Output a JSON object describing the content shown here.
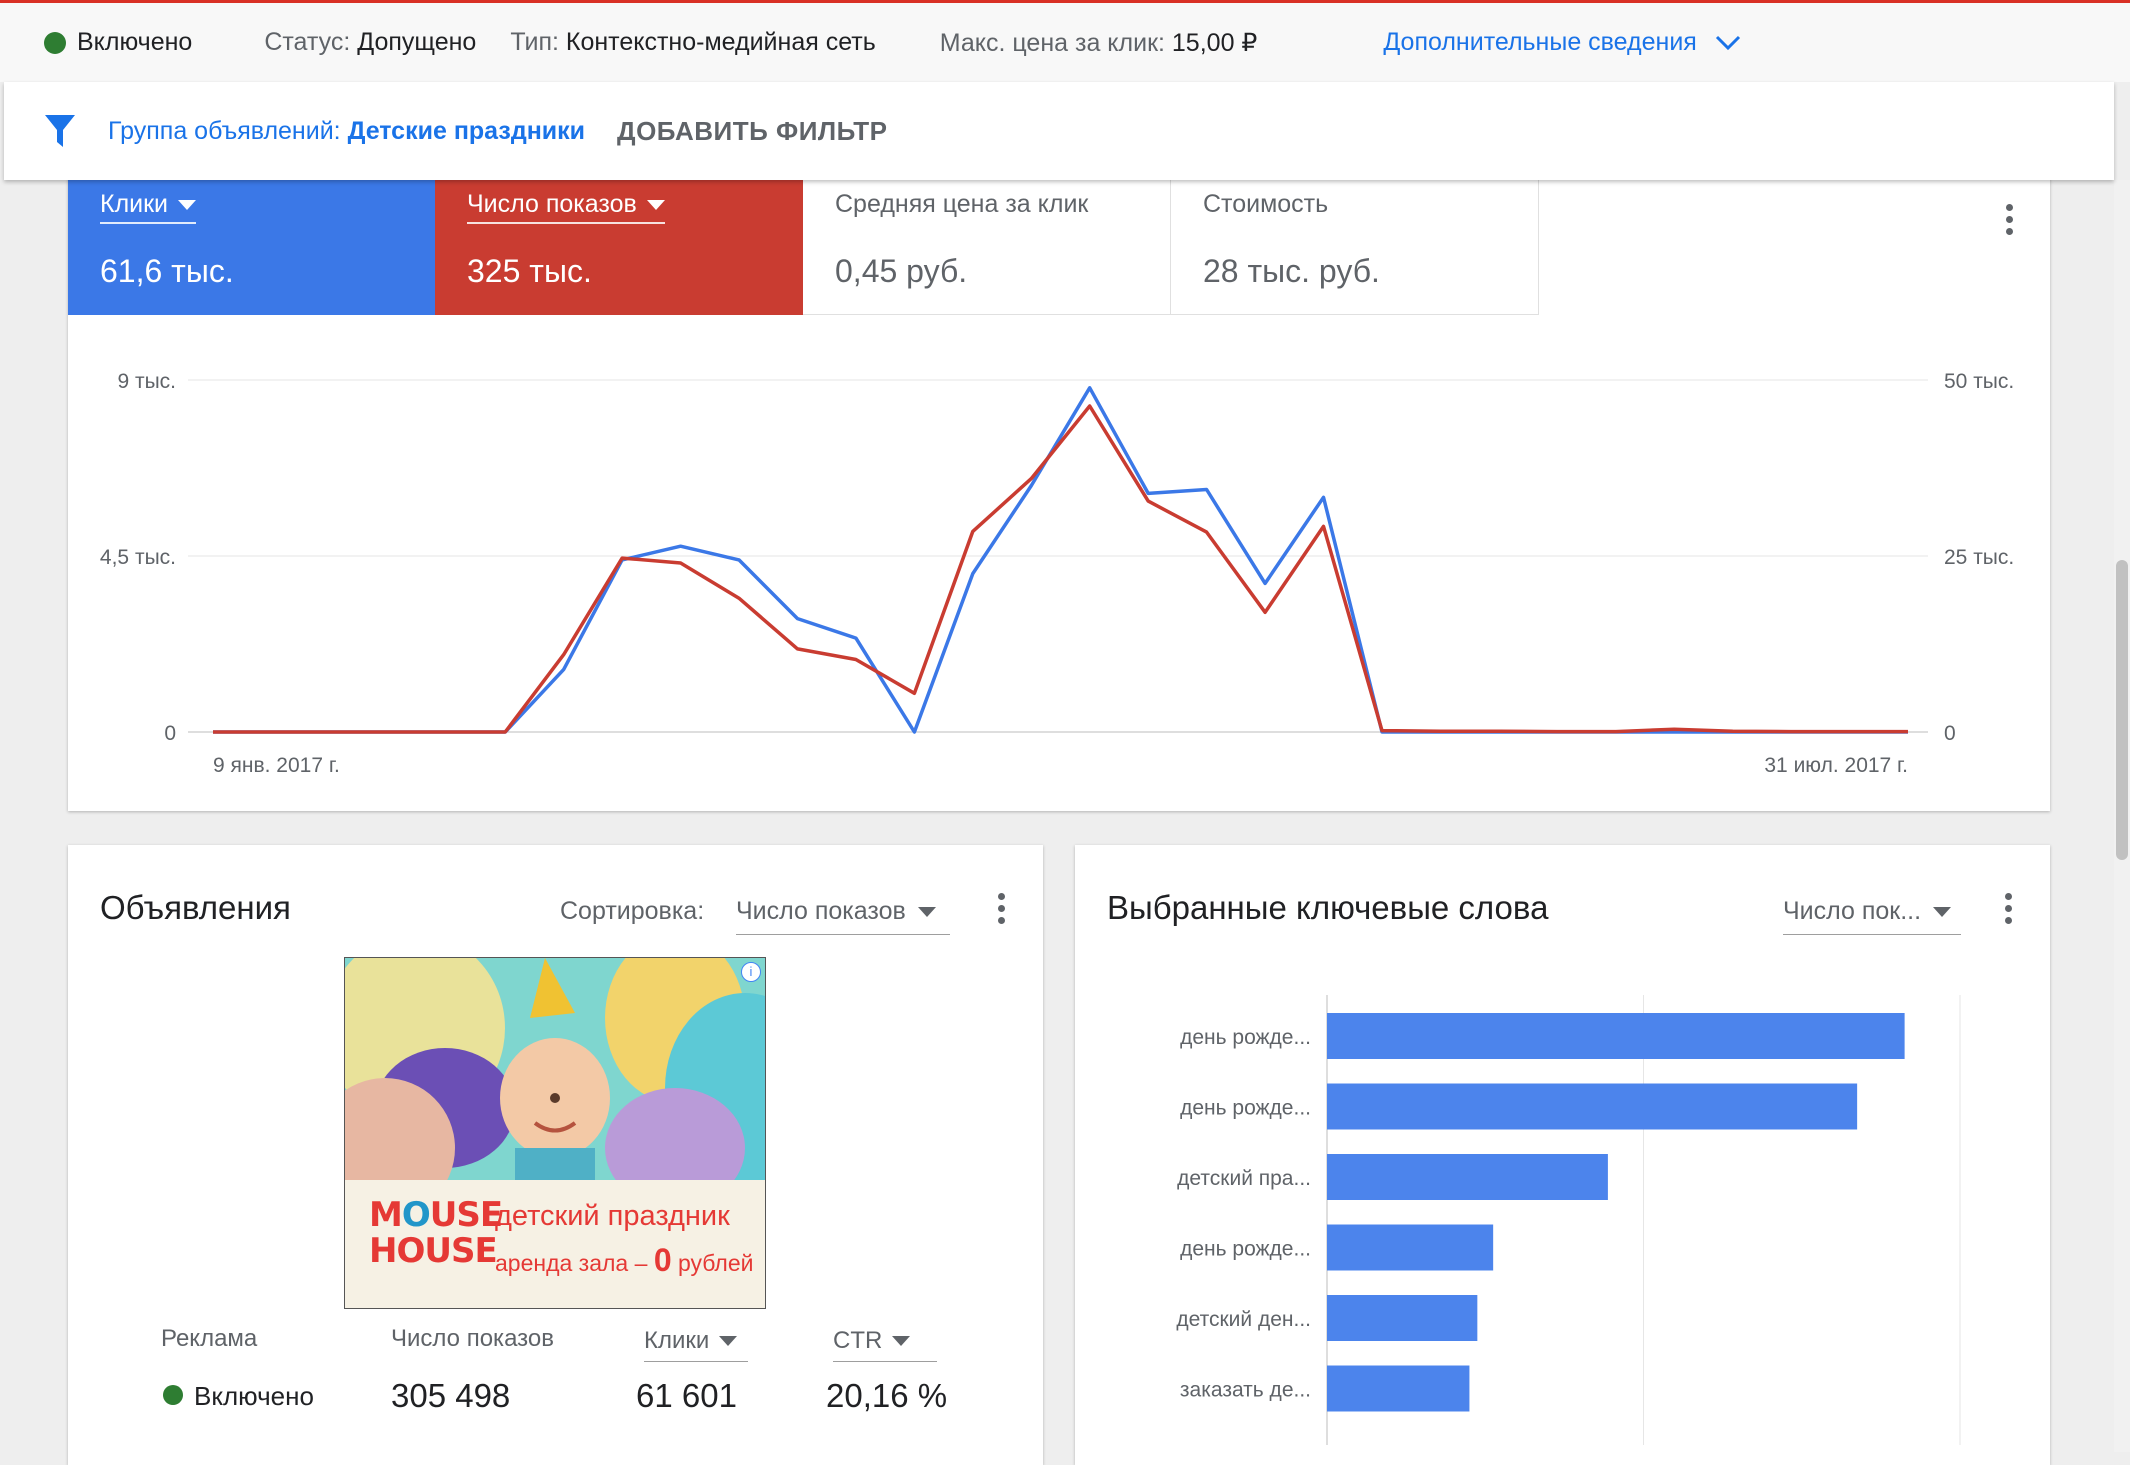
{
  "topbar": {
    "status_on": "Включено",
    "status_label": "Статус:",
    "status_value": "Допущено",
    "type_label": "Тип:",
    "type_value": "Контекстно-медийная сеть",
    "maxcpc_label": "Макс. цена за клик:",
    "maxcpc_value": "15,00 ₽",
    "more_link": "Дополнительные сведения"
  },
  "filterbar": {
    "group_label": "Группа объявлений:",
    "group_value": "Детские праздники",
    "add_filter": "ДОБАВИТЬ ФИЛЬТР"
  },
  "metrics": [
    {
      "label": "Клики",
      "value": "61,6 тыс.",
      "color": "#3b78e7",
      "selected": true
    },
    {
      "label": "Число показов",
      "value": "325 тыс.",
      "color": "#c93c31",
      "selected": true
    },
    {
      "label": "Средняя цена за клик",
      "value": "0,45 руб.",
      "selected": false
    },
    {
      "label": "Стоимость",
      "value": "28 тыс. руб.",
      "selected": false
    }
  ],
  "chart_data": [
    {
      "type": "line",
      "x_start_label": "9 янв. 2017 г.",
      "x_end_label": "31 июл. 2017 г.",
      "left_axis_ticks": [
        "0",
        "4,5 тыс.",
        "9 тыс."
      ],
      "right_axis_ticks": [
        "0",
        "25 тыс.",
        "50 тыс."
      ],
      "ylim_left": [
        0,
        9000
      ],
      "ylim_right": [
        0,
        50000
      ],
      "grid": true,
      "series": [
        {
          "name": "Клики",
          "axis": "left",
          "color": "#3b78e7",
          "values": [
            0,
            0,
            0,
            0,
            0,
            0,
            1600,
            4400,
            4750,
            4400,
            2900,
            2400,
            0,
            4050,
            6300,
            8800,
            6100,
            6200,
            3800,
            6000,
            0,
            0,
            0,
            0,
            0,
            0,
            0,
            0,
            0,
            0
          ]
        },
        {
          "name": "Число показов",
          "axis": "right",
          "color": "#c93c31",
          "values": [
            0,
            0,
            0,
            0,
            0,
            0,
            11000,
            24700,
            24000,
            19000,
            11800,
            10300,
            5500,
            28500,
            36000,
            46300,
            32800,
            28400,
            17000,
            29200,
            200,
            100,
            100,
            50,
            50,
            400,
            100,
            50,
            50,
            50
          ]
        }
      ]
    },
    {
      "type": "bar",
      "orientation": "horizontal",
      "categories": [
        "день рожде...",
        "день рожде...",
        "детский пра...",
        "день рожде...",
        "детский ден...",
        "заказать де..."
      ],
      "values": [
        7300,
        6700,
        3550,
        2100,
        1900,
        1800
      ],
      "xlim": [
        0,
        8000
      ],
      "color": "#4c84ec",
      "grid": true
    }
  ],
  "ads": {
    "title": "Объявления",
    "sort_label": "Сортировка:",
    "sort_value": "Число показов",
    "ad_logo_top_a": "M",
    "ad_logo_top_b": "O",
    "ad_logo_top_c": "USE",
    "ad_logo_bottom": "HOUSE",
    "ad_headline": "детский праздник",
    "ad_subline": "аренда зала –",
    "ad_subline_zero": "0",
    "ad_subline_end": "рублей",
    "col_ad": "Реклама",
    "col_impr": "Число показов",
    "col_clicks": "Клики",
    "col_ctr": "CTR",
    "row_status": "Включено",
    "row_impr": "305 498",
    "row_clicks": "61 601",
    "row_ctr": "20,16 %"
  },
  "keywords": {
    "title": "Выбранные ключевые слова",
    "sort_value": "Число пок..."
  },
  "icons": {
    "filter": "filter-icon",
    "chevron": "chevron-down-icon",
    "menu": "more-vert-icon",
    "info": "info-icon"
  }
}
